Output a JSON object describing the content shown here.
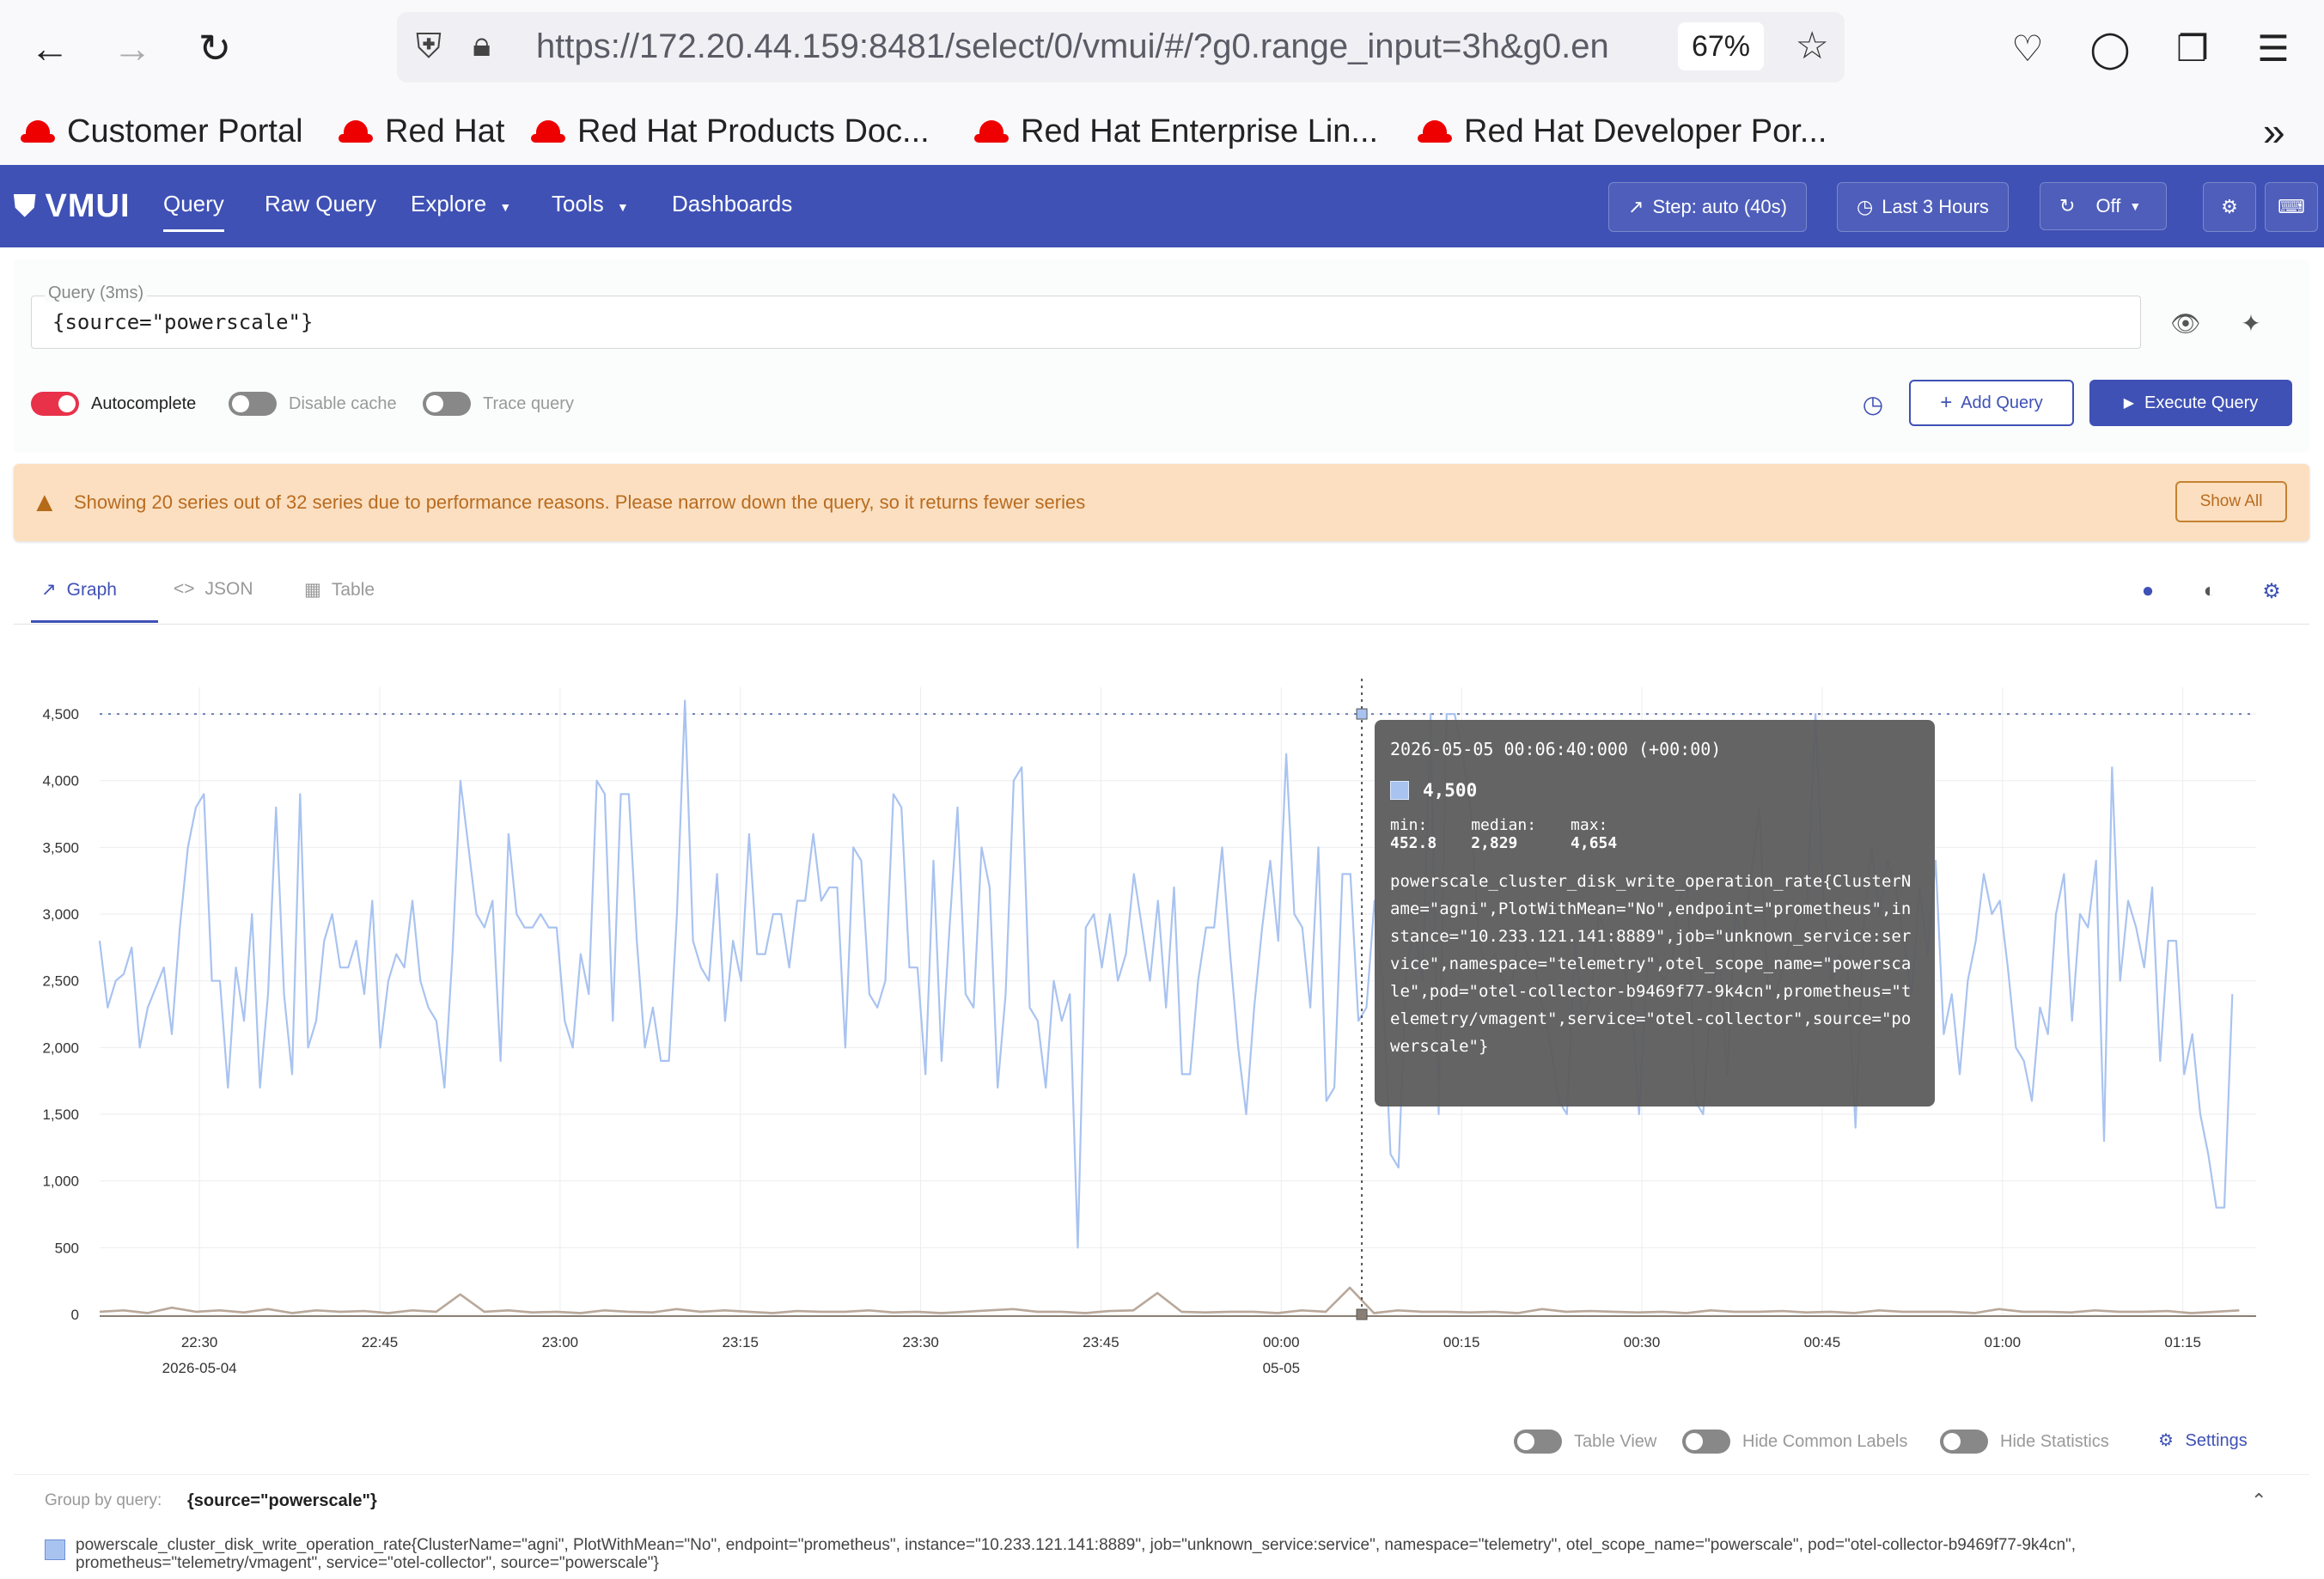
{
  "browser": {
    "url": "https://172.20.44.159:8481/select/0/vmui/#/?g0.range_input=3h&g0.en",
    "zoom": "67%",
    "bookmarks": [
      "Customer Portal",
      "Red Hat",
      "Red Hat Products Doc...",
      "Red Hat Enterprise Lin...",
      "Red Hat Developer Por..."
    ],
    "overflow_glyph": "»"
  },
  "header": {
    "logo": "VMUI",
    "menu": [
      "Query",
      "Raw Query",
      "Explore",
      "Tools",
      "Dashboards"
    ],
    "step": "Step: auto (40s)",
    "time_range": "Last 3 Hours",
    "refresh": "Off"
  },
  "query": {
    "label": "Query (3ms)",
    "value": "{source=\"powerscale\"}",
    "autocomplete": {
      "label": "Autocomplete",
      "on": true
    },
    "disable_cache": {
      "label": "Disable cache",
      "on": false
    },
    "trace_query": {
      "label": "Trace query",
      "on": false
    },
    "add_query": "Add Query",
    "execute_query": "Execute Query"
  },
  "warning": {
    "text": "Showing 20 series out of 32 series due to performance reasons. Please narrow down the query, so it returns fewer series",
    "button": "Show All"
  },
  "tabs": [
    "Graph",
    "JSON",
    "Table"
  ],
  "tooltip": {
    "date": "2026-05-05 00:06:40:000 (+00:00)",
    "value": "4,500",
    "min_label": "min:",
    "min": "452.8",
    "median_label": "median:",
    "median": "2,829",
    "max_label": "max:",
    "max": "4,654",
    "series_name": "powerscale_cluster_disk_write_operation_rate{ClusterName=\"agni\",PlotWithMean=\"No\",endpoint=\"prometheus\",instance=\"10.233.121.141:8889\",job=\"unknown_service:service\",namespace=\"telemetry\",otel_scope_name=\"powerscale\",pod=\"otel-collector-b9469f77-9k4cn\",prometheus=\"telemetry/vmagent\",service=\"otel-collector\",source=\"powerscale\"}"
  },
  "graph_controls": {
    "table_view": "Table View",
    "hide_common_labels": "Hide Common Labels",
    "hide_statistics": "Hide Statistics",
    "settings": "Settings"
  },
  "legend": {
    "group_by_label": "Group by query:",
    "group_by_query": "{source=\"powerscale\"}",
    "series_text": "powerscale_cluster_disk_write_operation_rate{ClusterName=\"agni\", PlotWithMean=\"No\", endpoint=\"prometheus\", instance=\"10.233.121.141:8889\", job=\"unknown_service:service\", namespace=\"telemetry\", otel_scope_name=\"powerscale\", pod=\"otel-collector-b9469f77-9k4cn\", prometheus=\"telemetry/vmagent\", service=\"otel-collector\", source=\"powerscale\"}"
  },
  "colors": {
    "header": "#3f51b5",
    "series_main": "#a9c3f0",
    "series_low": "#b9a89a",
    "warning_bg": "#fbdfc0"
  },
  "chart_data": {
    "type": "line",
    "y_ticks": [
      "0",
      "500",
      "1,000",
      "1,500",
      "2,000",
      "2,500",
      "3,000",
      "3,500",
      "4,000",
      "4,500"
    ],
    "ylim": [
      0,
      4700
    ],
    "x_ticks": [
      {
        "label": "22:30",
        "sub": "2026-05-04",
        "t": 0
      },
      {
        "label": "22:45",
        "sub": "",
        "t": 15
      },
      {
        "label": "23:00",
        "sub": "",
        "t": 30
      },
      {
        "label": "23:15",
        "sub": "",
        "t": 45
      },
      {
        "label": "23:30",
        "sub": "",
        "t": 60
      },
      {
        "label": "23:45",
        "sub": "",
        "t": 75
      },
      {
        "label": "00:00",
        "sub": "05-05",
        "t": 90
      },
      {
        "label": "00:15",
        "sub": "",
        "t": 105
      },
      {
        "label": "00:30",
        "sub": "",
        "t": 120
      },
      {
        "label": "00:45",
        "sub": "",
        "t": 135
      },
      {
        "label": "01:00",
        "sub": "",
        "t": 150
      },
      {
        "label": "01:15",
        "sub": "",
        "t": 165
      }
    ],
    "x_range": [
      -8.3,
      171.1
    ],
    "cursor_t": 96.7,
    "max_line": 4500,
    "series": [
      {
        "name": "powerscale_cluster_disk_write_operation_rate",
        "t_start": -8.3,
        "t_step": 0.667,
        "values": [
          2800,
          2300,
          2500,
          2550,
          2750,
          2000,
          2300,
          2450,
          2600,
          2100,
          2900,
          3500,
          3800,
          3900,
          2500,
          2500,
          1700,
          2600,
          2200,
          3000,
          1700,
          2400,
          3800,
          2400,
          1800,
          3900,
          2000,
          2200,
          2800,
          3000,
          2600,
          2600,
          2800,
          2400,
          3100,
          2000,
          2500,
          2700,
          2600,
          3100,
          2500,
          2300,
          2200,
          1700,
          2700,
          4000,
          3500,
          3000,
          2900,
          3100,
          1900,
          3600,
          3000,
          2900,
          2900,
          3000,
          2900,
          2900,
          2200,
          2000,
          2700,
          2400,
          4000,
          3900,
          2200,
          3900,
          3900,
          2800,
          2000,
          2300,
          1900,
          1900,
          3000,
          4600,
          2800,
          2600,
          2500,
          3300,
          2200,
          2800,
          2500,
          3600,
          2700,
          2700,
          3000,
          3000,
          2600,
          3100,
          3100,
          3600,
          3100,
          3200,
          3200,
          2000,
          3500,
          3400,
          2400,
          2300,
          2500,
          3900,
          3800,
          2600,
          2600,
          1800,
          3400,
          1900,
          2900,
          3800,
          2400,
          2300,
          3500,
          3200,
          1700,
          2400,
          4000,
          4100,
          2300,
          2200,
          1700,
          2500,
          2200,
          2400,
          500,
          2900,
          3000,
          2600,
          3000,
          2500,
          2700,
          3300,
          2900,
          2500,
          3100,
          2300,
          3200,
          1800,
          1800,
          2500,
          2900,
          2900,
          3500,
          2700,
          2000,
          1500,
          2300,
          2900,
          3400,
          2800,
          4200,
          3000,
          2900,
          2300,
          3500,
          1600,
          1700,
          3300,
          3300,
          2200,
          2300,
          3100,
          2500,
          1200,
          1100,
          2600,
          2900,
          2500,
          4500,
          1500,
          4500,
          4500,
          4200,
          3800,
          2800,
          2600,
          2700,
          2500,
          2400,
          2900,
          2700,
          2600,
          2300,
          2000,
          1600,
          1500,
          2800,
          2200,
          2400,
          3000,
          2800,
          2700,
          2600,
          2400,
          1500,
          2600,
          2700,
          2500,
          2600,
          3100,
          3300,
          1600,
          1500,
          2400,
          2700,
          1800,
          3000,
          2800,
          3300,
          3800,
          2500,
          2400,
          2600,
          2800,
          3000,
          3100,
          4500,
          3100,
          2500,
          2700,
          2600,
          1400,
          2900,
          3500,
          3000,
          3400,
          3200,
          2800,
          2400,
          3200,
          2700,
          3400,
          2100,
          2400,
          1800,
          2500,
          2800,
          3300,
          3000,
          3100,
          2600,
          2000,
          1900,
          1600,
          2300,
          2100,
          3000,
          3300,
          2200,
          3000,
          2900,
          3400,
          1300,
          4100,
          2500,
          3100,
          2900,
          2600,
          3200,
          1900,
          2800,
          2800,
          1800,
          2100,
          1500,
          1200,
          800,
          800,
          2400
        ]
      },
      {
        "name": "",
        "t_start": -8.3,
        "t_step": 2.0,
        "values": [
          20,
          30,
          10,
          50,
          20,
          30,
          15,
          40,
          10,
          30,
          20,
          25,
          10,
          30,
          20,
          150,
          20,
          30,
          15,
          20,
          10,
          30,
          20,
          15,
          40,
          20,
          30,
          20,
          10,
          25,
          20,
          20,
          30,
          15,
          20,
          10,
          20,
          30,
          40,
          20,
          20,
          10,
          25,
          30,
          160,
          20,
          15,
          20,
          20,
          10,
          30,
          20,
          200,
          10,
          30,
          20,
          20,
          15,
          20,
          10,
          40,
          20,
          25,
          20,
          15,
          20,
          10,
          30,
          20,
          20,
          25,
          15,
          20,
          10,
          30,
          20,
          20,
          20,
          10,
          40,
          20,
          20,
          15,
          30,
          20,
          20,
          25,
          10,
          20,
          30
        ]
      }
    ]
  }
}
